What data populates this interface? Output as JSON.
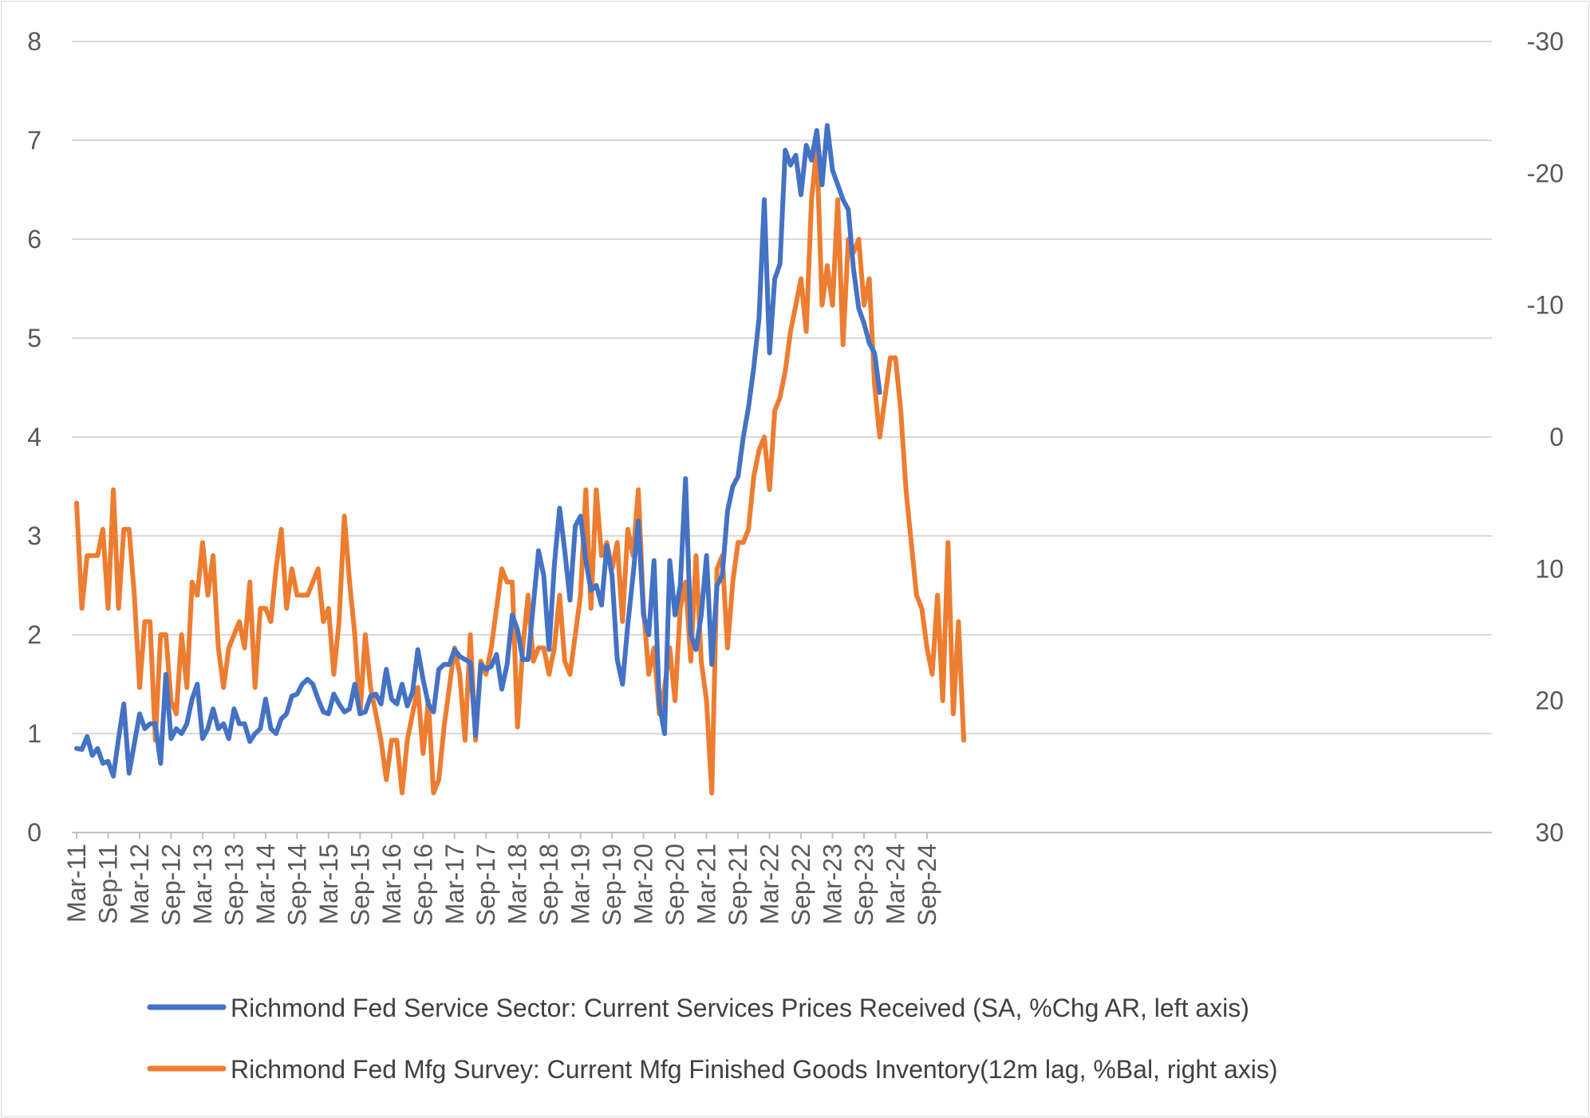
{
  "chart_data": {
    "type": "line",
    "title": "",
    "x_tick_labels": [
      "Mar-11",
      "Sep-11",
      "Mar-12",
      "Sep-12",
      "Mar-13",
      "Sep-13",
      "Mar-14",
      "Sep-14",
      "Mar-15",
      "Sep-15",
      "Mar-16",
      "Sep-16",
      "Mar-17",
      "Sep-17",
      "Mar-18",
      "Sep-18",
      "Mar-19",
      "Sep-19",
      "Mar-20",
      "Sep-20",
      "Mar-21",
      "Sep-21",
      "Mar-22",
      "Sep-22",
      "Mar-23",
      "Sep-23",
      "Mar-24",
      "Sep-24"
    ],
    "left_axis": {
      "ylim": [
        0,
        8
      ],
      "ticks": [
        "0",
        "1",
        "2",
        "3",
        "4",
        "5",
        "6",
        "7",
        "8"
      ]
    },
    "right_axis": {
      "ylim": [
        30,
        -30
      ],
      "inverted": true,
      "ticks": [
        "-30",
        "-20",
        "-10",
        "0",
        "10",
        "20",
        "30"
      ]
    },
    "grid": true,
    "legend_position": "bottom",
    "series": [
      {
        "name": "Richmond Fed Service Sector: Current Services Prices Received (SA, %Chg AR, left axis)",
        "axis": "left",
        "color": "#4472C4",
        "start": "Mar-11",
        "values": [
          0.85,
          0.84,
          0.97,
          0.78,
          0.85,
          0.7,
          0.72,
          0.57,
          0.95,
          1.3,
          0.6,
          0.9,
          1.2,
          1.05,
          1.1,
          1.1,
          0.7,
          1.6,
          0.95,
          1.05,
          1.0,
          1.1,
          1.35,
          1.5,
          0.95,
          1.05,
          1.25,
          1.05,
          1.1,
          0.95,
          1.25,
          1.1,
          1.1,
          0.92,
          1.0,
          1.05,
          1.35,
          1.05,
          1.0,
          1.15,
          1.2,
          1.38,
          1.4,
          1.5,
          1.55,
          1.5,
          1.35,
          1.22,
          1.2,
          1.4,
          1.3,
          1.22,
          1.25,
          1.5,
          1.2,
          1.22,
          1.38,
          1.4,
          1.3,
          1.65,
          1.35,
          1.3,
          1.5,
          1.28,
          1.42,
          1.85,
          1.55,
          1.3,
          1.22,
          1.65,
          1.7,
          1.7,
          1.85,
          1.78,
          1.75,
          1.72,
          0.98,
          1.7,
          1.65,
          1.68,
          1.8,
          1.45,
          1.7,
          2.2,
          2.05,
          1.75,
          1.75,
          2.3,
          2.85,
          2.6,
          1.85,
          2.7,
          3.28,
          2.85,
          2.35,
          3.1,
          3.2,
          2.75,
          2.45,
          2.5,
          2.3,
          2.9,
          2.6,
          1.75,
          1.5,
          2.1,
          2.6,
          3.15,
          2.2,
          2.0,
          2.75,
          1.3,
          1.0,
          2.75,
          2.2,
          2.5,
          3.58,
          2.0,
          1.85,
          2.2,
          2.8,
          1.7,
          2.5,
          2.6,
          3.25,
          3.5,
          3.6,
          4.0,
          4.3,
          4.7,
          5.2,
          6.4,
          4.85,
          5.6,
          5.75,
          6.9,
          6.75,
          6.85,
          6.45,
          6.95,
          6.8,
          7.1,
          6.55,
          7.15,
          6.7,
          6.55,
          6.4,
          6.3,
          5.7,
          5.3,
          5.15,
          4.95,
          4.85,
          4.45
        ]
      },
      {
        "name": "Richmond Fed Mfg Survey: Current Mfg Finished Goods Inventory(12m lag, %Bal, right axis)",
        "axis": "right",
        "color": "#ED7D31",
        "start": "Mar-11",
        "values": [
          5,
          13,
          9,
          9,
          9,
          7,
          13,
          4,
          13,
          7,
          7,
          12,
          19,
          14,
          14,
          23,
          15,
          15,
          20,
          21,
          15,
          19,
          11,
          12,
          8,
          12,
          9,
          16,
          19,
          16,
          15,
          14,
          16,
          11,
          19,
          13,
          13,
          14,
          10,
          7,
          13,
          10,
          12,
          12,
          12,
          11,
          10,
          14,
          13,
          18,
          14,
          6,
          11,
          15,
          21,
          15,
          19,
          21,
          23,
          26,
          23,
          23,
          27,
          23,
          21,
          19,
          24,
          20,
          27,
          26,
          22,
          19,
          16,
          18,
          23,
          15,
          23,
          17,
          18,
          16,
          13,
          10,
          11,
          11,
          22,
          16,
          12,
          17,
          16,
          16,
          18,
          16,
          12,
          17,
          18,
          15,
          12,
          4,
          13,
          4,
          9,
          8,
          10,
          8,
          14,
          7,
          9,
          4,
          13,
          18,
          16,
          21,
          19,
          16,
          20,
          13,
          11,
          17,
          9,
          17,
          20,
          27,
          10,
          9,
          16,
          11,
          8,
          8,
          7,
          3,
          1,
          0,
          4,
          -2,
          -3,
          -5,
          -8,
          -10,
          -12,
          -8,
          -18,
          -22,
          -10,
          -13,
          -10,
          -18,
          -7,
          -15,
          -14,
          -15,
          -10,
          -12,
          -4,
          0,
          -3,
          -6,
          -6,
          -2,
          4,
          8,
          12,
          13,
          16,
          18,
          12,
          20,
          8,
          21,
          14,
          23
        ]
      }
    ]
  },
  "legend": {
    "blue_label": "Richmond Fed Service Sector: Current Services Prices Received (SA, %Chg AR, left axis)",
    "orange_label": "Richmond Fed Mfg Survey: Current Mfg Finished Goods Inventory(12m lag, %Bal, right axis)"
  }
}
